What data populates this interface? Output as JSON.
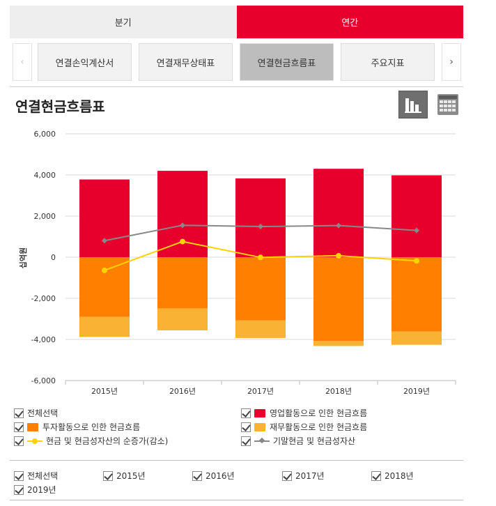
{
  "period_tabs": [
    {
      "label": "분기",
      "active": false
    },
    {
      "label": "연간",
      "active": true
    }
  ],
  "statement_tabs": [
    {
      "label": "연결손익계산서",
      "active": false
    },
    {
      "label": "연결재무상태표",
      "active": false
    },
    {
      "label": "연결현금흐름표",
      "active": true
    },
    {
      "label": "주요지표",
      "active": false
    }
  ],
  "nav": {
    "prev_label": "‹",
    "next_label": "›"
  },
  "page_title": "연결현금흐름표",
  "view_icons": {
    "chart": "bar-chart-icon",
    "table": "table-grid-icon"
  },
  "chart_data": {
    "type": "bar",
    "stacked": true,
    "categories": [
      "2015년",
      "2016년",
      "2017년",
      "2018년",
      "2019년"
    ],
    "ylabel": "십억원",
    "ylim": [
      -6000,
      6000
    ],
    "yticks": [
      6000,
      4000,
      2000,
      0,
      -2000,
      -4000,
      -6000
    ],
    "ytick_labels": [
      "6,000",
      "4,000",
      "2,000",
      "0",
      "-2,000",
      "-4,000",
      "-6,000"
    ],
    "grid": true,
    "series": [
      {
        "name": "영업활동으로 인한 현금흐름",
        "kind": "bar",
        "color": "#e8002d",
        "values": [
          3780,
          4200,
          3830,
          4300,
          3980
        ]
      },
      {
        "name": "투자활동으로 인한 현금흐름",
        "kind": "bar",
        "color": "#ff7f00",
        "values": [
          -2900,
          -2500,
          -3080,
          -4070,
          -3620
        ]
      },
      {
        "name": "재무활동으로 인한 현금흐름",
        "kind": "bar",
        "color": "#f9b233",
        "values": [
          -980,
          -1060,
          -850,
          -250,
          -640
        ]
      },
      {
        "name": "현금 및 현금성자산의 순증가(감소)",
        "kind": "line",
        "color": "#ffd200",
        "values": [
          -640,
          760,
          -10,
          70,
          -180
        ]
      },
      {
        "name": "기말현금 및 현금성자산",
        "kind": "line",
        "color": "#888888",
        "values": [
          800,
          1550,
          1490,
          1540,
          1300
        ]
      }
    ]
  },
  "legend": {
    "select_all_label": "전체선택",
    "items": [
      {
        "label": "영업활동으로 인한 현금흐름",
        "swatch": "box",
        "color": "#e8002d"
      },
      {
        "label": "투자활동으로 인한 현금흐름",
        "swatch": "box",
        "color": "#ff7f00"
      },
      {
        "label": "재무활동으로 인한 현금흐름",
        "swatch": "box",
        "color": "#f9b233"
      },
      {
        "label": "현금 및 현금성자산의 순증가(감소)",
        "swatch": "line-dot",
        "color": "#ffd200"
      },
      {
        "label": "기말현금 및 현금성자산",
        "swatch": "line-diamond",
        "color": "#888888"
      }
    ]
  },
  "year_filter": {
    "select_all_label": "전체선택",
    "years": [
      "2015년",
      "2016년",
      "2017년",
      "2018년",
      "2019년"
    ]
  }
}
